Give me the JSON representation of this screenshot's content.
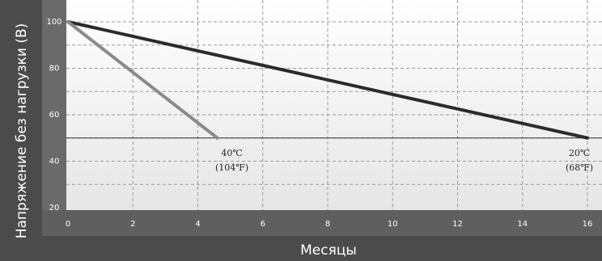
{
  "chart_data": {
    "type": "line",
    "xlabel": "Месяцы",
    "ylabel": "Напряжение без нагрузки (В)",
    "xlim": [
      0,
      16
    ],
    "ylim": [
      20,
      100
    ],
    "x_ticks": [
      "0",
      "2",
      "4",
      "6",
      "8",
      "10",
      "12",
      "14",
      "16"
    ],
    "y_ticks": [
      "20",
      "40",
      "60",
      "80",
      "100"
    ],
    "grid": true,
    "reference_line": {
      "y": 50
    },
    "series": [
      {
        "color": "#2b2b2b",
        "x": [
          0,
          16
        ],
        "y": [
          100,
          50
        ]
      },
      {
        "color": "#8a8a8a",
        "x": [
          0,
          4.6
        ],
        "y": [
          100,
          50
        ]
      }
    ],
    "annotations": [
      {
        "line1": "40℃",
        "line2": "(104℉)",
        "x": 4.6,
        "y": 50
      },
      {
        "line1": "20℃",
        "line2": "(68℉)",
        "x": 16,
        "y": 50
      }
    ],
    "colors": {
      "axis_band": "#5a5a5a",
      "plot_bg": "#f2f2f2"
    }
  }
}
